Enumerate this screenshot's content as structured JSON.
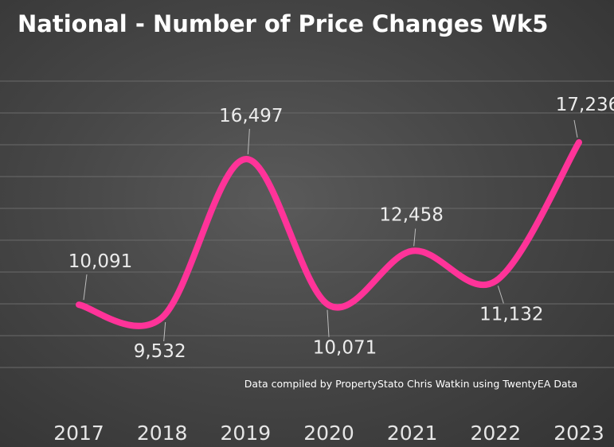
{
  "chart_data": {
    "type": "line",
    "title": "National - Number of Price Changes Wk5",
    "annotation": "Data compiled by PropertyStato Chris Watkin using TwentyEA Data",
    "categories": [
      "2017",
      "2018",
      "2019",
      "2020",
      "2021",
      "2022",
      "2023"
    ],
    "series": [
      {
        "values": [
          10091,
          9532,
          16497,
          10071,
          12458,
          11132,
          17236
        ],
        "labels": [
          "10,091",
          "9,532",
          "16,497",
          "10,071",
          "12,458",
          "11,132",
          "17,236"
        ]
      }
    ],
    "ylim": [
      6000,
      20000
    ],
    "grid": true,
    "line_color": "#ff3399",
    "xlabel": "",
    "ylabel": ""
  }
}
